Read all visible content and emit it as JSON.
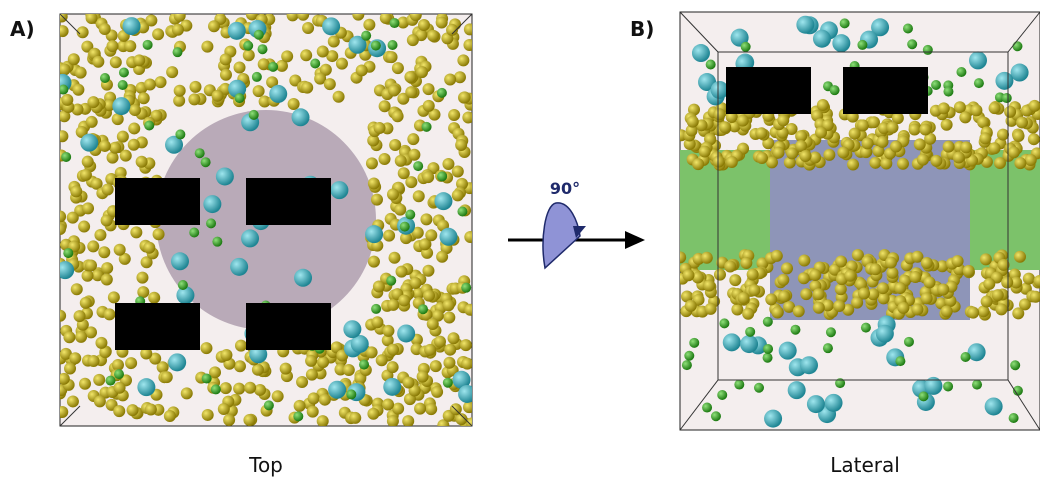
{
  "panels": [
    {
      "label": "A)",
      "caption": "Top"
    },
    {
      "label": "B)",
      "caption": "Lateral"
    }
  ],
  "rotation": {
    "label": "90°"
  }
}
